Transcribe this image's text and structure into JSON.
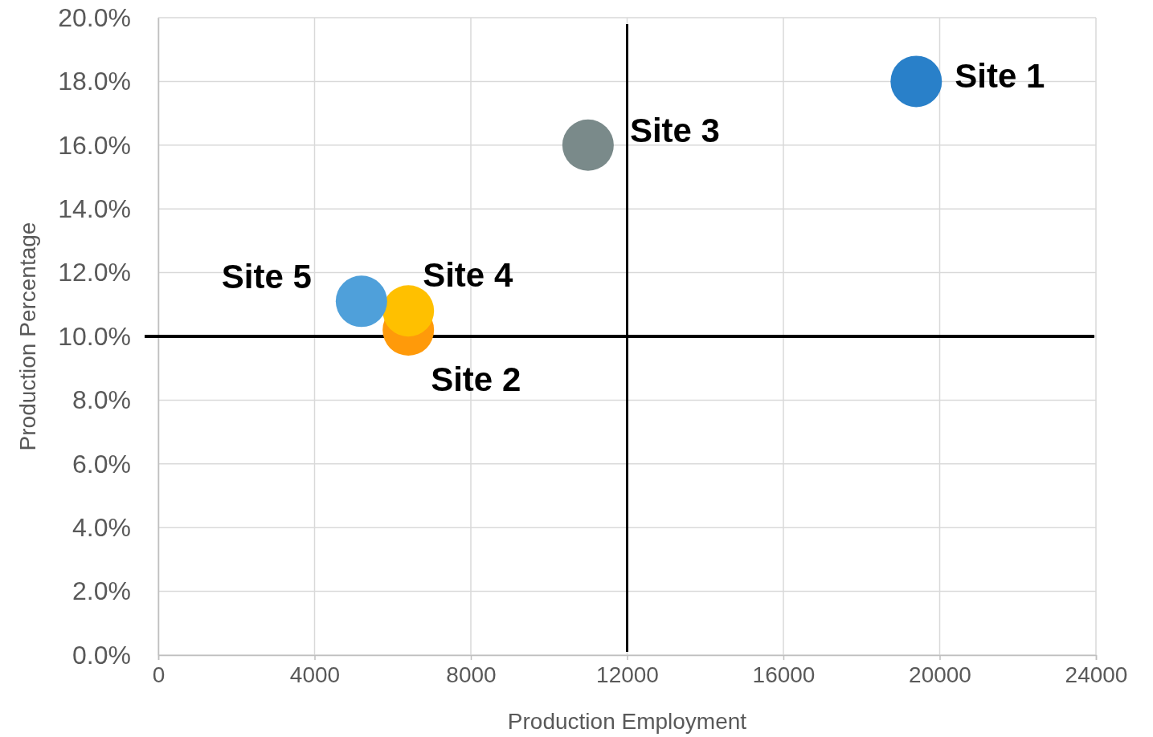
{
  "chart_data": {
    "type": "scatter",
    "xlabel": "Production Employment",
    "ylabel": "Production Percentage",
    "xlim": [
      0,
      24000
    ],
    "xticks": [
      0,
      4000,
      8000,
      12000,
      16000,
      20000,
      24000
    ],
    "ylim": [
      0,
      20
    ],
    "yticks": [
      {
        "value": 0,
        "label": "0.0%"
      },
      {
        "value": 2,
        "label": "2.0%"
      },
      {
        "value": 4,
        "label": "4.0%"
      },
      {
        "value": 6,
        "label": "6.0%"
      },
      {
        "value": 8,
        "label": "8.0%"
      },
      {
        "value": 10,
        "label": "10.0%"
      },
      {
        "value": 12,
        "label": "12.0%"
      },
      {
        "value": 14,
        "label": "14.0%"
      },
      {
        "value": 16,
        "label": "16.0%"
      },
      {
        "value": 18,
        "label": "18.0%"
      },
      {
        "value": 20,
        "label": "20.0%"
      }
    ],
    "grid": true,
    "marker": "circle",
    "ref_lines": [
      {
        "axis": "y",
        "value": 10,
        "color": "#000000"
      },
      {
        "axis": "x",
        "value": 12000,
        "color": "#000000"
      }
    ],
    "series": [
      {
        "name": "Site 1",
        "color": "#2980c9",
        "x": [
          19400
        ],
        "values": [
          18.0
        ]
      },
      {
        "name": "Site 2",
        "color": "#ff9a0a",
        "x": [
          6400
        ],
        "values": [
          10.2
        ]
      },
      {
        "name": "Site 3",
        "color": "#7a8a8a",
        "x": [
          11000
        ],
        "values": [
          16.0
        ]
      },
      {
        "name": "Site 4",
        "color": "#ffc000",
        "x": [
          6400
        ],
        "values": [
          10.8
        ]
      },
      {
        "name": "Site 5",
        "color": "#4fa0da",
        "x": [
          5200
        ],
        "values": [
          11.1
        ]
      }
    ]
  }
}
